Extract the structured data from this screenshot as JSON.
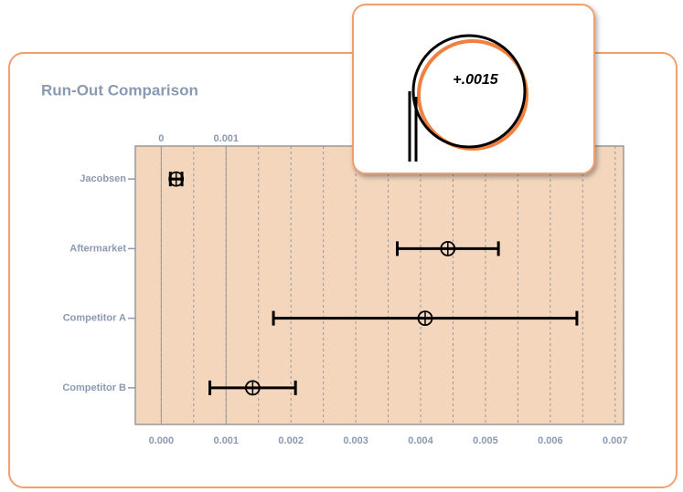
{
  "chart_data": {
    "type": "errorbar",
    "title": "Run-Out Comparison",
    "annotation": "+.0015",
    "categories": [
      "Jacobsen",
      "Aftermarket",
      "Competitor A",
      "Competitor B"
    ],
    "values": [
      0.00023,
      0.00442,
      0.00407,
      0.00141
    ],
    "errors": [
      9e-05,
      0.00078,
      0.00234,
      0.00066
    ],
    "color": "#000000",
    "plot_color": "#f4d6bd",
    "xlim": [
      -0.0004,
      0.00713
    ],
    "xticks": [
      {
        "value": 0,
        "label": "0.000"
      },
      {
        "value": 0.001,
        "label": "0.001"
      },
      {
        "value": 0.002,
        "label": "0.002"
      },
      {
        "value": 0.003,
        "label": "0.003"
      },
      {
        "value": 0.004,
        "label": "0.004"
      },
      {
        "value": 0.005,
        "label": "0.005"
      },
      {
        "value": 0.006,
        "label": "0.006"
      },
      {
        "value": 0.007,
        "label": "0.007"
      }
    ],
    "x2ticks": [
      {
        "value": 0,
        "label": "0"
      },
      {
        "value": 0.001,
        "label": "0.001"
      }
    ],
    "minor_xticks": [
      0.0005,
      0.0015,
      0.0025,
      0.0035,
      0.0045,
      0.0055,
      0.0065
    ],
    "grid": true
  }
}
